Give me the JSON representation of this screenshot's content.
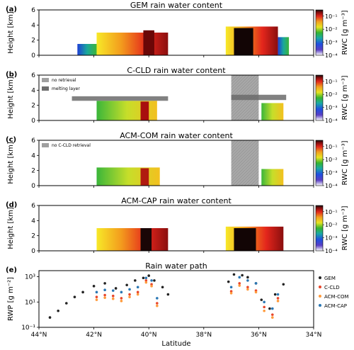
{
  "colors": {
    "grey_retrieval": "#9b9b9b",
    "melting_layer": "#6b6b6b",
    "gem": "#222222",
    "c_cld": "#e8462a",
    "acm_com": "#ff9a3c",
    "acm_cap": "#2a77b4"
  },
  "panels": [
    {
      "letter": "(a)",
      "title": "GEM rain water content",
      "ylabel": "Height [km]",
      "cbar_label": "RWC [g m⁻³]",
      "legend": []
    },
    {
      "letter": "(b)",
      "title": "C-CLD rain water content",
      "ylabel": "Height [km]",
      "cbar_label": "RWC [g m⁻³]",
      "legend": [
        {
          "label": "no retrieval",
          "color": "#a0a0a0"
        },
        {
          "label": "melting layer",
          "color": "#6e6e6e"
        }
      ]
    },
    {
      "letter": "(c)",
      "title": "ACM-COM rain water content",
      "ylabel": "Height [km]",
      "cbar_label": "RWC [g m⁻³]",
      "legend": [
        {
          "label": "no C-CLD retrieval",
          "color": "#a0a0a0"
        }
      ]
    },
    {
      "letter": "(d)",
      "title": "ACM-CAP rain water content",
      "ylabel": "Height [km]",
      "cbar_label": "RWC [g m⁻³]",
      "legend": []
    },
    {
      "letter": "(e)",
      "title": "Rain water path",
      "ylabel": "RWP [g m⁻²]",
      "cbar_label": "",
      "legend": [
        {
          "label": "GEM",
          "color": "#222222"
        },
        {
          "label": "C-CLD",
          "color": "#e8462a"
        },
        {
          "label": "ACM-COM",
          "color": "#ff9a3c"
        },
        {
          "label": "ACM-CAP",
          "color": "#2a77b4"
        }
      ]
    }
  ],
  "x_ticks": [
    "44°N",
    "42°N",
    "40°N",
    "38°N",
    "36°N",
    "34°N"
  ],
  "height_ticks": [
    "0",
    "2",
    "4",
    "6"
  ],
  "cbar_ticks": [
    "10⁻¹",
    "10⁻²",
    "10⁻³",
    "10⁻⁴"
  ],
  "rwp_ticks": [
    "10³",
    "10¹",
    "10⁻¹"
  ],
  "xlabel": "Latitude",
  "chart_data": {
    "type": "heatmap",
    "x_axis": {
      "label": "Latitude",
      "range_degN": [
        44,
        34
      ],
      "ticks": [
        44,
        42,
        40,
        38,
        36,
        34
      ]
    },
    "height_axis_km": {
      "range": [
        0,
        6
      ],
      "ticks": [
        0,
        2,
        4,
        6
      ]
    },
    "colorbar": {
      "label": "RWC [g m⁻³]",
      "scale": "log",
      "range": [
        0.0001,
        0.3
      ],
      "ticks": [
        0.1,
        0.01,
        0.001,
        0.0001
      ]
    },
    "rain_water_path": {
      "type": "scatter",
      "ylabel": "RWP [g m⁻²]",
      "yscale": "log",
      "ylim": [
        0.1,
        3000
      ],
      "series": [
        {
          "name": "GEM",
          "lat": [
            43.6,
            43.3,
            43.0,
            42.7,
            42.4,
            42.0,
            41.6,
            41.2,
            40.8,
            40.5,
            40.2,
            40.0,
            39.8,
            39.5,
            39.3,
            37.1,
            36.9,
            36.6,
            36.4,
            36.1,
            35.9,
            35.6,
            35.4,
            35.1
          ],
          "values": [
            0.6,
            2,
            8,
            25,
            60,
            180,
            300,
            120,
            220,
            500,
            800,
            1200,
            500,
            150,
            40,
            400,
            1500,
            1300,
            900,
            300,
            15,
            3,
            40,
            250
          ]
        },
        {
          "name": "C-CLD",
          "lat": [
            41.9,
            41.6,
            41.3,
            41.0,
            40.7,
            40.4,
            40.1,
            39.9,
            39.7,
            37.0,
            36.7,
            36.4,
            36.1,
            35.8,
            35.5,
            35.3
          ],
          "values": [
            25,
            35,
            30,
            20,
            40,
            60,
            500,
            250,
            8,
            70,
            300,
            150,
            80,
            4,
            1,
            20
          ]
        },
        {
          "name": "ACM-COM",
          "lat": [
            41.9,
            41.6,
            41.3,
            41.0,
            40.7,
            40.4,
            40.1,
            39.9,
            39.7,
            37.0,
            36.7,
            36.4,
            36.1,
            35.8,
            35.5,
            35.3
          ],
          "values": [
            15,
            22,
            18,
            12,
            25,
            40,
            350,
            180,
            5,
            50,
            200,
            100,
            60,
            2,
            0.6,
            12
          ]
        },
        {
          "name": "ACM-CAP",
          "lat": [
            41.9,
            41.6,
            41.3,
            41.0,
            40.7,
            40.4,
            40.1,
            39.9,
            39.7,
            37.0,
            36.7,
            36.4,
            36.1,
            35.8,
            35.5,
            35.3
          ],
          "values": [
            60,
            90,
            80,
            60,
            100,
            150,
            800,
            500,
            20,
            150,
            900,
            500,
            300,
            10,
            3,
            40
          ]
        }
      ]
    }
  }
}
